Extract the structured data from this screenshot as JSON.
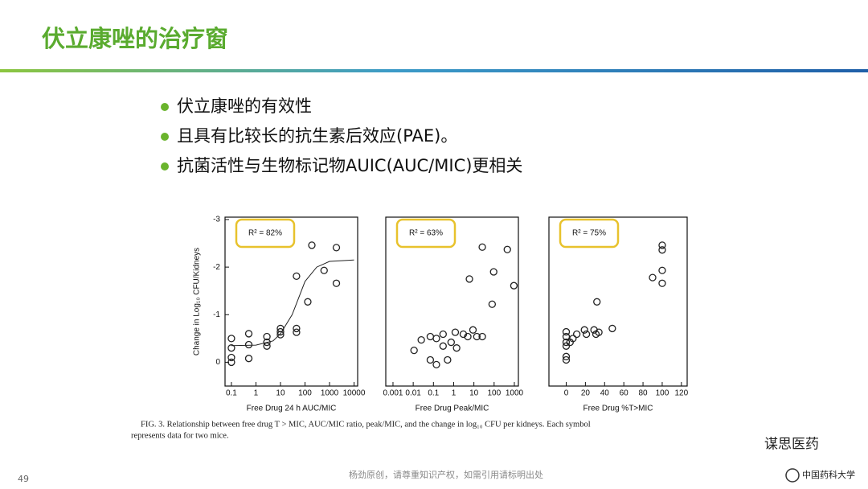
{
  "slide": {
    "title": "伏立康唑的治疗窗",
    "bullets": [
      "伏立康唑的有效性",
      "且具有比较长的抗生素后效应(PAE)。",
      "抗菌活性与生物标记物AUIC(AUC/MIC)更相关"
    ],
    "caption": [
      "FIG. 3. Relationship between free drug T > MIC, AUC/MIC ratio, peak/MIC, and the change in log₁₀ CFU per kidneys. Each symbol",
      "represents data for two mice."
    ],
    "watermark": "谋思医药",
    "page_number": "49",
    "footer": "杨劲原创，请尊重知识产权，如需引用请标明出处",
    "logo": "中国药科大学"
  },
  "chart_data": [
    {
      "type": "scatter",
      "ylabel": "Change in Log₁₀ CFU/Kidneys",
      "xlabel": "Free Drug 24 h AUC/MIC",
      "annotation": "R² = 82%",
      "xscale": "log",
      "xlim": [
        0.055,
        14000
      ],
      "xticks": [
        0.1,
        1,
        10,
        100,
        1000,
        10000
      ],
      "ylim": [
        0.5,
        -3.05
      ],
      "yticks": [
        -3,
        -2,
        -1,
        0
      ],
      "series": [
        {
          "x": [
            0.1,
            0.1,
            0.1,
            0.1,
            0.51,
            0.51,
            0.51,
            2.8,
            2.8,
            2.8,
            10,
            10,
            10,
            45,
            45,
            45,
            130,
            190,
            600,
            1900,
            1900
          ],
          "values": [
            -0.5,
            -0.3,
            -0.1,
            0,
            -0.6,
            -0.37,
            -0.08,
            -0.54,
            -0.42,
            -0.34,
            -0.71,
            -0.64,
            -0.58,
            -0.71,
            -0.63,
            -1.81,
            -1.27,
            -2.46,
            -1.93,
            -2.41,
            -1.66
          ],
          "color": "#222222"
        },
        {
          "style": "line",
          "x": [
            0.1,
            1,
            5,
            10,
            30,
            60,
            100,
            300,
            1000,
            10000
          ],
          "values": [
            -0.35,
            -0.36,
            -0.45,
            -0.6,
            -1.0,
            -1.4,
            -1.7,
            -2.0,
            -2.12,
            -2.15
          ],
          "color": "#222222"
        }
      ]
    },
    {
      "type": "scatter",
      "xlabel": "Free Drug Peak/MIC",
      "annotation": "R² = 63%",
      "xscale": "log",
      "xlim": [
        0.00044,
        1585
      ],
      "xticks": [
        0.001,
        0.01,
        0.1,
        1,
        10,
        100,
        1000
      ],
      "ylim": [
        0.5,
        -3.05
      ],
      "series": [
        {
          "x": [
            0.011,
            0.025,
            0.07,
            0.07,
            0.14,
            0.14,
            0.3,
            0.3,
            0.5,
            0.75,
            1.2,
            1.4,
            3,
            5,
            6,
            9,
            14,
            26,
            26,
            80,
            95,
            450,
            950
          ],
          "values": [
            -0.25,
            -0.47,
            -0.54,
            -0.05,
            -0.5,
            0.05,
            -0.59,
            -0.34,
            -0.05,
            -0.42,
            -0.63,
            -0.3,
            -0.59,
            -0.54,
            -1.75,
            -0.68,
            -0.54,
            -2.42,
            -0.54,
            -1.22,
            -1.9,
            -2.37,
            -1.61
          ],
          "color": "#222222"
        }
      ]
    },
    {
      "type": "scatter",
      "xlabel": "Free Drug %T>MIC",
      "annotation": "R² = 75%",
      "xscale": "linear",
      "xlim": [
        -18,
        126
      ],
      "xticks": [
        0,
        20,
        40,
        60,
        80,
        100,
        120
      ],
      "ylim": [
        0.5,
        -3.05
      ],
      "series": [
        {
          "x": [
            0,
            0,
            0,
            0,
            0,
            0,
            4,
            7,
            11,
            19,
            21,
            29,
            31,
            32,
            34,
            48,
            90,
            100,
            100,
            100,
            100
          ],
          "values": [
            -0.64,
            -0.54,
            -0.42,
            -0.34,
            -0.12,
            -0.05,
            -0.42,
            -0.5,
            -0.59,
            -0.68,
            -0.59,
            -0.68,
            -0.59,
            -1.27,
            -0.63,
            -0.71,
            -1.78,
            -2.46,
            -2.36,
            -1.93,
            -1.66
          ],
          "color": "#222222"
        }
      ]
    }
  ]
}
